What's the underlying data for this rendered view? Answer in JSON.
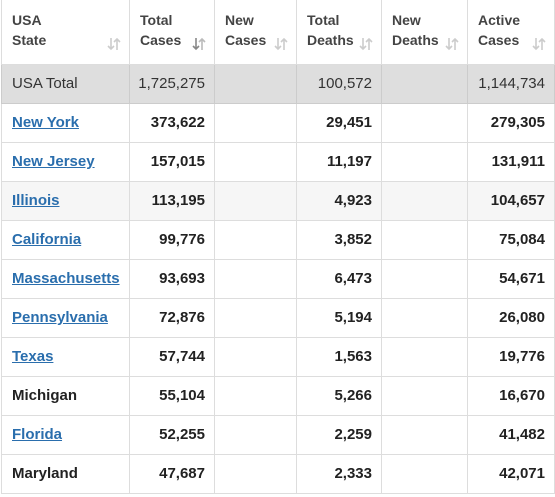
{
  "table": {
    "headers": [
      [
        "USA",
        "State"
      ],
      [
        "Total",
        "Cases"
      ],
      [
        "New",
        "Cases"
      ],
      [
        "Total",
        "Deaths"
      ],
      [
        "New",
        "Deaths"
      ],
      [
        "Active",
        "Cases"
      ]
    ],
    "total_row": [
      "USA Total",
      "1,725,275",
      null,
      "100,572",
      null,
      "1,144,734"
    ],
    "rows": [
      {
        "cells": [
          "New York",
          "373,622",
          null,
          "29,451",
          null,
          "279,305"
        ],
        "link": true
      },
      {
        "cells": [
          "New Jersey",
          "157,015",
          null,
          "11,197",
          null,
          "131,911"
        ],
        "link": true
      },
      {
        "cells": [
          "Illinois",
          "113,195",
          null,
          "4,923",
          null,
          "104,657"
        ],
        "link": true,
        "highlighted": true
      },
      {
        "cells": [
          "California",
          "99,776",
          null,
          "3,852",
          null,
          "75,084"
        ],
        "link": true
      },
      {
        "cells": [
          "Massachusetts",
          "93,693",
          null,
          "6,473",
          null,
          "54,671"
        ],
        "link": true
      },
      {
        "cells": [
          "Pennsylvania",
          "72,876",
          null,
          "5,194",
          null,
          "26,080"
        ],
        "link": true
      },
      {
        "cells": [
          "Texas",
          "57,744",
          null,
          "1,563",
          null,
          "19,776"
        ],
        "link": true
      },
      {
        "cells": [
          "Michigan",
          "55,104",
          null,
          "5,266",
          null,
          "16,670"
        ],
        "link": false
      },
      {
        "cells": [
          "Florida",
          "52,255",
          null,
          "2,259",
          null,
          "41,482"
        ],
        "link": true
      },
      {
        "cells": [
          "Maryland",
          "47,687",
          null,
          "2,333",
          null,
          "42,071"
        ],
        "link": false
      }
    ],
    "sorted_column": 1
  }
}
